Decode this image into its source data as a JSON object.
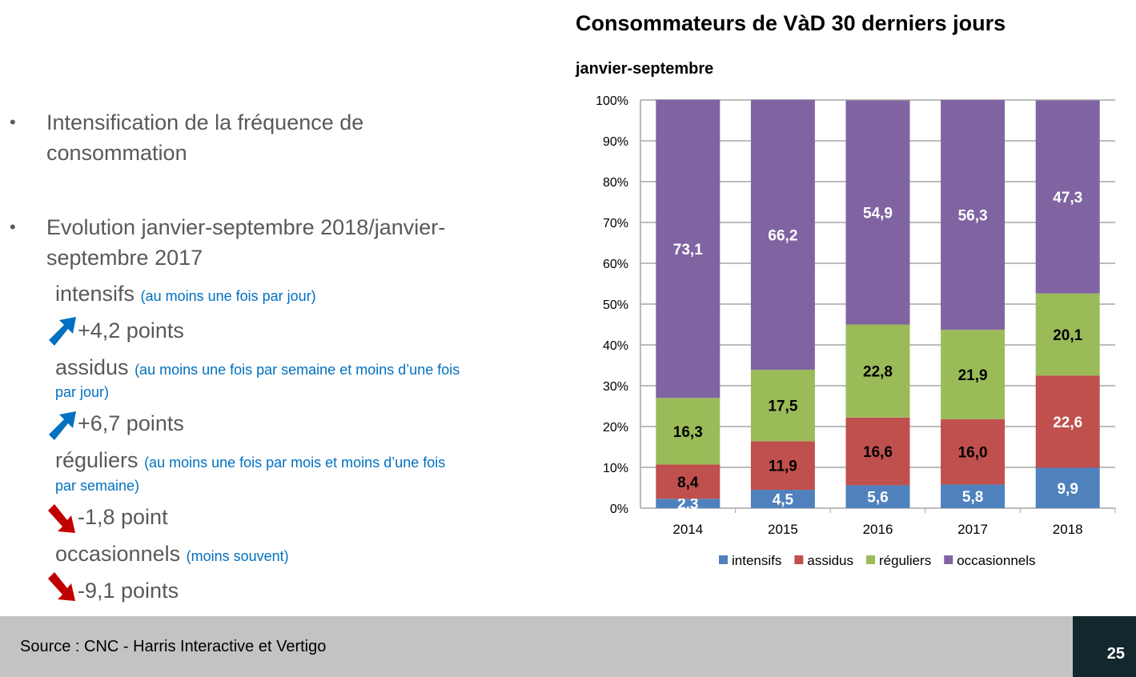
{
  "bullets": [
    "Intensification de la fréquence de consommation",
    "Evolution janvier-septembre 2018/janvier-septembre 2017"
  ],
  "bullet_glyph": "•",
  "categories": [
    {
      "name": "intensifs",
      "desc": "(au moins une fois par jour)",
      "desc2": "",
      "delta": "+4,2 points",
      "trend": "up"
    },
    {
      "name": "assidus",
      "desc": "(au moins une fois par semaine et moins d’une fois",
      "desc2": "par jour)",
      "delta": "+6,7 points",
      "trend": "up"
    },
    {
      "name": "réguliers",
      "desc": "(au moins une fois par mois et moins d’une fois",
      "desc2": "par semaine)",
      "delta": "-1,8 point",
      "trend": "down"
    },
    {
      "name": "occasionnels",
      "desc": "(moins souvent)",
      "desc2": "",
      "delta": "-9,1 points",
      "trend": "down"
    }
  ],
  "arrow_colors": {
    "up": "#0070C0",
    "down": "#C00000"
  },
  "chart_data": {
    "type": "bar",
    "stacked": true,
    "title": "Consommateurs de VàD 30 derniers jours",
    "subtitle": "janvier-septembre",
    "categories": [
      "2014",
      "2015",
      "2016",
      "2017",
      "2018"
    ],
    "series": [
      {
        "name": "intensifs",
        "color": "#4F81BD",
        "values": [
          2.3,
          4.5,
          5.6,
          5.8,
          9.9
        ],
        "labels": [
          "2,3",
          "4,5",
          "5,6",
          "5,8",
          "9,9"
        ]
      },
      {
        "name": "assidus",
        "color": "#C0504D",
        "values": [
          8.4,
          11.9,
          16.6,
          16.0,
          22.6
        ],
        "labels": [
          "8,4",
          "11,9",
          "16,6",
          "16,0",
          "22,6"
        ]
      },
      {
        "name": "réguliers",
        "color": "#9BBB59",
        "values": [
          16.3,
          17.5,
          22.8,
          21.9,
          20.1
        ],
        "labels": [
          "16,3",
          "17,5",
          "22,8",
          "21,9",
          "20,1"
        ]
      },
      {
        "name": "occasionnels",
        "color": "#8064A2",
        "values": [
          73.1,
          66.2,
          54.9,
          56.3,
          47.3
        ],
        "labels": [
          "73,1",
          "66,2",
          "54,9",
          "56,3",
          "47,3"
        ]
      }
    ],
    "ylim": [
      0,
      100
    ],
    "yticks": [
      "0%",
      "10%",
      "20%",
      "30%",
      "40%",
      "50%",
      "60%",
      "70%",
      "80%",
      "90%",
      "100%"
    ],
    "grid": true,
    "legend": "bottom"
  },
  "footer": {
    "source": "Source : CNC - Harris Interactive et Vertigo",
    "page": "25"
  }
}
